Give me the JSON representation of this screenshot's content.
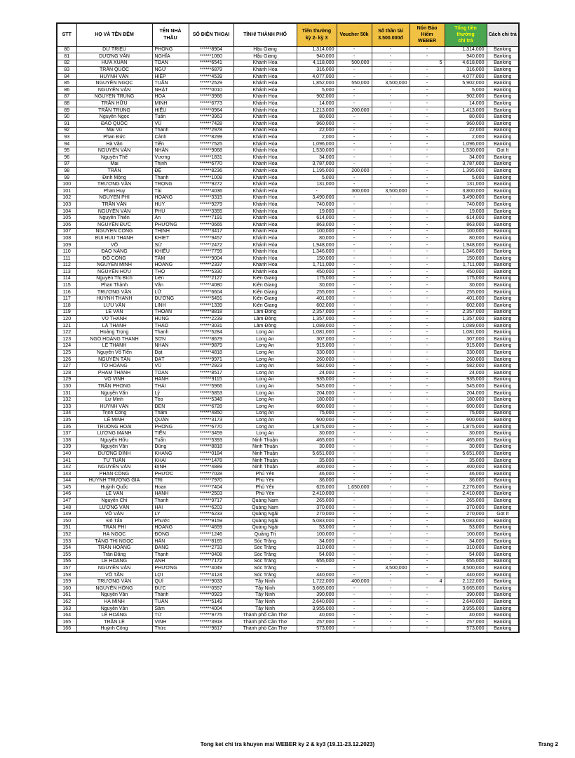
{
  "page": {
    "footer_left": "Tong ket chi tra khuyen mai WEBER ky 2 & ky3 (19.11-23.12.2023)",
    "footer_right": "Trang 2"
  },
  "colors": {
    "header_yellow": "#F0C143",
    "header_green": "#4CA64F",
    "header_green_text": "#FFFF00",
    "header_gray": "#E8E8E8",
    "border_dark": "#1a1a1a",
    "border_mid": "#3f3f3f"
  },
  "table": {
    "columns": [
      {
        "key": "stt",
        "label": "STT",
        "bg": "plain"
      },
      {
        "key": "ho-va-ten-dem",
        "label": "HỌ VÀ TÊN ĐỆM",
        "bg": "plain"
      },
      {
        "key": "ten-nha-thau",
        "label": "TÊN NHÀ THẦU",
        "bg": "plain"
      },
      {
        "key": "so-dien-thoai",
        "label": "SỐ ĐIỆN THOẠI",
        "bg": "plain"
      },
      {
        "key": "tinh-thanh-pho",
        "label": "TỈNH/ THÀNH PHỐ",
        "bg": "plain"
      },
      {
        "key": "tien-thuong-ky2-ky3",
        "label": "Tiền thưởng\nkỳ 2-  kỳ 3",
        "bg": "yellow"
      },
      {
        "key": "voucher-50k",
        "label": "Voucher 50k",
        "bg": "yellow"
      },
      {
        "key": "so-than-tai",
        "label": "Số thần tài\n3.500.000đ",
        "bg": "yellow"
      },
      {
        "key": "non-bao-hiem-weber",
        "label": "Nón Bảo Hiểm\nWEBER",
        "bg": "yellow"
      },
      {
        "key": "tong-tien-thuong-chi-tra",
        "label": "Tổng tiền thưởng\nchi trả",
        "bg": "green"
      },
      {
        "key": "cach-chi-tra",
        "label": "Cách chi trả",
        "bg": "gray"
      }
    ],
    "rows": [
      [
        "80",
        "DƯ TRIỆU",
        "PHONG",
        "******8904",
        "Hậu Giang",
        "1,314,000",
        "-",
        "-",
        "-",
        "1,314,000",
        "Banking"
      ],
      [
        "81",
        "DƯƠNG VĂN",
        "NGHĨA",
        "******1060",
        "Hậu Giang",
        "940,000",
        "-",
        "-",
        "-",
        "940,000",
        "Banking"
      ],
      [
        "82",
        "HỨA XUÂN",
        "TOÀN",
        "******6541",
        "Khánh Hòa",
        "4,118,000",
        "500,000",
        "-",
        "5",
        "4,618,000",
        "Banking"
      ],
      [
        "83",
        "TRẦN QUỐC",
        "NGỮ",
        "******6879",
        "Khánh Hòa",
        "316,000",
        "-",
        "-",
        "-",
        "316,000",
        "Banking"
      ],
      [
        "84",
        "HUỲNH VĂN",
        "HIỆP",
        "******4539",
        "Khánh Hòa",
        "4,077,000",
        "-",
        "-",
        "-",
        "4,077,000",
        "Banking"
      ],
      [
        "85",
        "NGUYỄN NGỌC",
        "TUẤN",
        "******2529",
        "Khánh Hòa",
        "1,852,000",
        "550,000",
        "3,500,000",
        "-",
        "5,902,000",
        "Banking"
      ],
      [
        "86",
        "NGUYỄN VĂN",
        "NHẬT",
        "******0010",
        "Khánh Hòa",
        "5,000",
        "-",
        "-",
        "-",
        "5,000",
        "Banking"
      ],
      [
        "87",
        "NGUYỄN TRUNG",
        "HOÀ",
        "******3966",
        "Khánh Hòa",
        "902,000",
        "-",
        "-",
        "-",
        "902,000",
        "Banking"
      ],
      [
        "88",
        "TRẦN HỮU",
        "MINH",
        "******6773",
        "Khánh Hòa",
        "14,000",
        "-",
        "-",
        "-",
        "14,000",
        "Banking"
      ],
      [
        "89",
        "TRẦN TRUNG",
        "HIẾU",
        "******0964",
        "Khánh Hòa",
        "1,213,000",
        "200,000",
        "-",
        "-",
        "1,413,000",
        "Banking"
      ],
      [
        "90",
        "Nguyễn Ngọc",
        "Tuấn",
        "******3963",
        "Khánh Hòa",
        "80,000",
        "-",
        "-",
        "-",
        "80,000",
        "Banking"
      ],
      [
        "91",
        "ĐÀO QUỐC",
        "VŨ",
        "******7428",
        "Khánh Hòa",
        "960,000",
        "-",
        "-",
        "-",
        "960,000",
        "Banking"
      ],
      [
        "92",
        "Mai Vũ",
        "Thành",
        "******2978",
        "Khánh Hòa",
        "22,000",
        "-",
        "-",
        "-",
        "22,000",
        "Banking"
      ],
      [
        "93",
        "Phan Đức",
        "Cảnh",
        "******8299",
        "Khánh Hòa",
        "2,000",
        "-",
        "-",
        "-",
        "2,000",
        "Banking"
      ],
      [
        "94",
        "Hà Văn",
        "Tiến",
        "******7525",
        "Khánh Hòa",
        "1,096,000",
        "-",
        "-",
        "-",
        "1,096,000",
        "Banking"
      ],
      [
        "95",
        "NGUYỄN VĂN",
        "NHÂN",
        "******9068",
        "Khánh Hòa",
        "1,530,000",
        "-",
        "-",
        "-",
        "1,530,000",
        "Got It"
      ],
      [
        "96",
        "Nguyễn Thế",
        "Vương",
        "******1831",
        "Khánh Hòa",
        "34,000",
        "-",
        "-",
        "-",
        "34,000",
        "Banking"
      ],
      [
        "97",
        "Mai",
        "Thịnh",
        "******6770",
        "Khánh Hòa",
        "3,787,000",
        "-",
        "-",
        "-",
        "3,787,000",
        "Banking"
      ],
      [
        "98",
        "TRẦN",
        "ĐỆ",
        "******8236",
        "Khánh Hòa",
        "1,195,000",
        "200,000",
        "-",
        "-",
        "1,395,000",
        "Banking"
      ],
      [
        "99",
        "Đinh Mộng",
        "Thanh",
        "******1008",
        "Khánh Hòa",
        "5,000",
        "-",
        "-",
        "-",
        "5,000",
        "Banking"
      ],
      [
        "100",
        "TRƯƠNG VĂN",
        "TRỌNG",
        "******9272",
        "Khánh Hòa",
        "131,000",
        "-",
        "-",
        "-",
        "131,000",
        "Banking"
      ],
      [
        "101",
        "Phan Huy",
        "Tài",
        "******4036",
        "Khánh Hòa",
        "-",
        "300,000",
        "3,500,000",
        "-",
        "3,800,000",
        "Banking"
      ],
      [
        "102",
        "NGUYỄN PHI",
        "HOÀNG",
        "******3315",
        "Khánh Hòa",
        "3,490,000",
        "-",
        "-",
        "-",
        "3,490,000",
        "Banking"
      ],
      [
        "103",
        "TRẦN VĂN",
        "HUY",
        "******9279",
        "Khánh Hòa",
        "740,000",
        "-",
        "-",
        "-",
        "740,000",
        "Banking"
      ],
      [
        "104",
        "NGUYỄN VĂN",
        "PHÚ",
        "******3355",
        "Khánh Hòa",
        "19,000",
        "-",
        "-",
        "-",
        "19,000",
        "Banking"
      ],
      [
        "105",
        "Nguyễn Thiên",
        "Ân",
        "******7191",
        "Khánh Hòa",
        "614,000",
        "-",
        "-",
        "-",
        "614,000",
        "Banking"
      ],
      [
        "106",
        "NGUYỄN ĐỨC",
        "PHƯƠNG",
        "******0665",
        "Khánh Hòa",
        "863,000",
        "-",
        "-",
        "-",
        "863,000",
        "Banking"
      ],
      [
        "107",
        "NGUYỄN CÔNG",
        "THỊNH",
        "******3417",
        "Khánh Hòa",
        "100,000",
        "-",
        "-",
        "-",
        "100,000",
        "Banking"
      ],
      [
        "108",
        "BUI HUU THANH",
        "KHIET",
        "******9457",
        "Khánh Hòa",
        "80,000",
        "-",
        "-",
        "-",
        "80,000",
        "Banking"
      ],
      [
        "109",
        "VÕ",
        "SỬ",
        "******2472",
        "Khánh Hòa",
        "1,948,000",
        "-",
        "-",
        "-",
        "1,948,000",
        "Banking"
      ],
      [
        "110",
        "ĐÀO NĂNG",
        "KHIẾU",
        "******7799",
        "Khánh Hòa",
        "1,346,000",
        "-",
        "-",
        "-",
        "1,346,000",
        "Banking"
      ],
      [
        "111",
        "ĐỖ CÔNG",
        "TÂM",
        "******9004",
        "Khánh Hòa",
        "150,000",
        "-",
        "-",
        "-",
        "150,000",
        "Banking"
      ],
      [
        "112",
        "NGUYỄN MINH",
        "HOÀNG",
        "******2337",
        "Khánh Hòa",
        "1,711,000",
        "-",
        "-",
        "-",
        "1,711,000",
        "Banking"
      ],
      [
        "113",
        "NGUYỄN HỮU",
        "THỌ",
        "******5330",
        "Khánh Hòa",
        "450,000",
        "-",
        "-",
        "-",
        "450,000",
        "Banking"
      ],
      [
        "114",
        "Nguyễn Thị Bích",
        "Liên",
        "******2127",
        "Kiên Giang",
        "175,000",
        "-",
        "-",
        "-",
        "175,000",
        "Banking"
      ],
      [
        "115",
        "Phan Thành",
        "Vân",
        "******4080",
        "Kiên Giang",
        "30,000",
        "-",
        "-",
        "-",
        "30,000",
        "Banking"
      ],
      [
        "116",
        "TRƯƠNG VĂN",
        "LỮ",
        "******6604",
        "Kiên Giang",
        "255,000",
        "-",
        "-",
        "-",
        "255,000",
        "Banking"
      ],
      [
        "117",
        "HUỲNH THANH",
        "ĐƯỜNG",
        "******5491",
        "Kiên Giang",
        "401,000",
        "-",
        "-",
        "-",
        "401,000",
        "Banking"
      ],
      [
        "118",
        "LƯU VĂN",
        "LINH",
        "******1339",
        "Kiên Giang",
        "602,000",
        "-",
        "-",
        "-",
        "602,000",
        "Banking"
      ],
      [
        "119",
        "LÊ VĂN",
        "THOÁN",
        "******8818",
        "Lâm Đồng",
        "2,357,000",
        "-",
        "-",
        "-",
        "2,357,000",
        "Banking"
      ],
      [
        "120",
        "VŨ THANH",
        "HÙNG",
        "******2239",
        "Lâm Đồng",
        "1,357,000",
        "-",
        "-",
        "-",
        "1,357,000",
        "Banking"
      ],
      [
        "121",
        "LÃ THANH",
        "THẢO",
        "******3031",
        "Lâm Đồng",
        "1,089,000",
        "-",
        "-",
        "-",
        "1,089,000",
        "Banking"
      ],
      [
        "122",
        "Hoàng Trọng",
        "Thanh",
        "******5284",
        "Long An",
        "1,081,000",
        "-",
        "-",
        "-",
        "1,081,000",
        "Banking"
      ],
      [
        "123",
        "NGÔ HOÀNG THANH",
        "SƠN",
        "******8679",
        "Long An",
        "307,000",
        "-",
        "-",
        "-",
        "307,000",
        "Banking"
      ],
      [
        "124",
        "LÊ THANH",
        "NHÀN",
        "******9879",
        "Long An",
        "915,000",
        "-",
        "-",
        "-",
        "915,000",
        "Banking"
      ],
      [
        "125",
        "Nguyễn Võ Tiến",
        "Đạt",
        "******4818",
        "Long An",
        "330,000",
        "-",
        "-",
        "-",
        "330,000",
        "Banking"
      ],
      [
        "126",
        "NGUYỄN TẤN",
        "ĐẠT",
        "******9971",
        "Long An",
        "260,000",
        "-",
        "-",
        "-",
        "260,000",
        "Banking"
      ],
      [
        "127",
        "TÔ HOÀNG",
        "VŨ",
        "******2923",
        "Long An",
        "582,000",
        "-",
        "-",
        "-",
        "582,000",
        "Banking"
      ],
      [
        "128",
        "PHAM THANH",
        "TOAN",
        "******8517",
        "Long An",
        "24,000",
        "-",
        "-",
        "-",
        "24,000",
        "Banking"
      ],
      [
        "129",
        "VÕ VINH",
        "HANH",
        "******9115",
        "Long An",
        "935,000",
        "-",
        "-",
        "-",
        "935,000",
        "Banking"
      ],
      [
        "130",
        "TRẦN PHONG",
        "THÁI",
        "******5966",
        "Long An",
        "545,000",
        "-",
        "-",
        "-",
        "545,000",
        "Banking"
      ],
      [
        "131",
        "Nguyễn Văn",
        "Lý",
        "******5853",
        "Long An",
        "204,000",
        "-",
        "-",
        "-",
        "204,000",
        "Banking"
      ],
      [
        "132",
        "Lư Minh",
        "Tèo",
        "******5348",
        "Long An",
        "180,000",
        "-",
        "-",
        "-",
        "180,000",
        "Banking"
      ],
      [
        "133",
        "HUỲNH VĂN",
        "ĐEN",
        "******6728",
        "Long An",
        "600,000",
        "-",
        "-",
        "-",
        "600,000",
        "Banking"
      ],
      [
        "134",
        "Trịnh Công",
        "Thẩm",
        "******4850",
        "Long An",
        "75,000",
        "-",
        "-",
        "-",
        "75,000",
        "Banking"
      ],
      [
        "135",
        "LÊ MINH",
        "QUÂN",
        "******3173",
        "Long An",
        "600,000",
        "-",
        "-",
        "-",
        "600,000",
        "Banking"
      ],
      [
        "136",
        "TRUONG HOAI",
        "PHONG",
        "******6770",
        "Long An",
        "1,875,000",
        "-",
        "-",
        "-",
        "1,875,000",
        "Banking"
      ],
      [
        "137",
        "LƯƠNG MẠNH",
        "TIẾN",
        "******3459",
        "Long An",
        "30,000",
        "-",
        "-",
        "-",
        "30,000",
        "Banking"
      ],
      [
        "138",
        "Nguyễn Hữu",
        "Tuấn",
        "******5393",
        "Ninh Thuận",
        "465,000",
        "-",
        "-",
        "-",
        "465,000",
        "Banking"
      ],
      [
        "139",
        "Nguyễn Văn",
        "Dũng",
        "******8818",
        "Ninh Thuận",
        "30,000",
        "-",
        "-",
        "-",
        "30,000",
        "Banking"
      ],
      [
        "140",
        "DƯƠNG ĐÌNH",
        "KHANG",
        "******0184",
        "Ninh Thuận",
        "5,651,000",
        "-",
        "-",
        "-",
        "5,651,000",
        "Banking"
      ],
      [
        "141",
        "TỪ TUẤN",
        "KHẢI",
        "******1478",
        "Ninh Thuận",
        "35,000",
        "-",
        "-",
        "-",
        "35,000",
        "Banking"
      ],
      [
        "142",
        "NGUYỄN VĂN",
        "ĐỊNH",
        "******4889",
        "Ninh Thuận",
        "400,000",
        "-",
        "-",
        "-",
        "400,000",
        "Banking"
      ],
      [
        "143",
        "PHAN CÔNG",
        "PHƯỚC",
        "******7028",
        "Phú Yên",
        "46,000",
        "-",
        "-",
        "-",
        "46,000",
        "Banking"
      ],
      [
        "144",
        "HUỲNH TRƯƠNG GIA",
        "TRÍ",
        "******7970",
        "Phú Yên",
        "36,000",
        "-",
        "-",
        "-",
        "36,000",
        "Banking"
      ],
      [
        "145",
        "Huỳnh Quốc",
        "Hoan",
        "******7404",
        "Phú Yên",
        "626,000",
        "1,650,000",
        "-",
        "-",
        "2,276,000",
        "Banking"
      ],
      [
        "146",
        "LÊ VĂN",
        "HẠNH",
        "******2503",
        "Phú Yên",
        "2,410,000",
        "-",
        "-",
        "-",
        "2,410,000",
        "Banking"
      ],
      [
        "147",
        "Nguyễn Chí",
        "Thanh",
        "******9717",
        "Quảng Nam",
        "265,000",
        "-",
        "-",
        "-",
        "265,000",
        "Banking"
      ],
      [
        "148",
        "LƯƠNG VĂN",
        "HẢI",
        "******6203",
        "Quảng Nam",
        "370,000",
        "-",
        "-",
        "-",
        "370,000",
        "Banking"
      ],
      [
        "149",
        "VÕ VĂN",
        "LY",
        "******6233",
        "Quảng Ngãi",
        "270,000",
        "-",
        "-",
        "-",
        "270,000",
        "Got It"
      ],
      [
        "150",
        "Đỗ Tấn",
        "Phước",
        "******9159",
        "Quảng Ngãi",
        "5,083,000",
        "-",
        "-",
        "-",
        "5,083,000",
        "Banking"
      ],
      [
        "151",
        "TRẦN PHI",
        "HOÀNG",
        "******4659",
        "Quảng Ngãi",
        "53,000",
        "-",
        "-",
        "-",
        "53,000",
        "Banking"
      ],
      [
        "152",
        "HẠ NGỌC",
        "ĐÔNG",
        "******1246",
        "Quảng Trị",
        "100,000",
        "-",
        "-",
        "-",
        "100,000",
        "Banking"
      ],
      [
        "153",
        "TĂNG THỊ NGỌC",
        "HÂN",
        "******8165",
        "Sóc Trăng",
        "34,000",
        "-",
        "-",
        "-",
        "34,000",
        "Banking"
      ],
      [
        "154",
        "TRẦN HOÀNG",
        "ĐANG",
        "******2733",
        "Sóc Trăng",
        "310,000",
        "-",
        "-",
        "-",
        "310,000",
        "Banking"
      ],
      [
        "155",
        "Trần Đăng",
        "Thạnh",
        "******0408",
        "Sóc Trăng",
        "54,000",
        "-",
        "-",
        "-",
        "54,000",
        "Banking"
      ],
      [
        "156",
        "LÊ HOÀNG",
        "ANH",
        "******7172",
        "Sóc Trăng",
        "655,000",
        "-",
        "-",
        "-",
        "655,000",
        "Banking"
      ],
      [
        "157",
        "NGUYỄN VĂN",
        "PHƯƠNG",
        "******4049",
        "Sóc Trăng",
        "-",
        "-",
        "3,500,000",
        "-",
        "3,500,000",
        "Banking"
      ],
      [
        "158",
        "VÕ TẤN",
        "LỢI",
        "******4124",
        "Sóc Trăng",
        "440,000",
        "-",
        "-",
        "-",
        "440,000",
        "Banking"
      ],
      [
        "159",
        "TRƯƠNG VĂN",
        "QUÍ",
        "******9033",
        "Tây Ninh",
        "1,722,000",
        "400,000",
        "-",
        "4",
        "2,122,000",
        "Banking"
      ],
      [
        "160",
        "NGUYỄN HỒNG",
        "ĐỨC",
        "******0557",
        "Tây Ninh",
        "3,665,000",
        "-",
        "-",
        "-",
        "3,665,000",
        "Banking"
      ],
      [
        "161",
        "Nguyễn Văn",
        "Thành",
        "******0923",
        "Tây Ninh",
        "390,000",
        "-",
        "-",
        "-",
        "390,000",
        "Banking"
      ],
      [
        "162",
        "HÀ MINH",
        "TUẤN",
        "******5149",
        "Tây Ninh",
        "2,640,000",
        "-",
        "-",
        "-",
        "2,640,000",
        "Banking"
      ],
      [
        "163",
        "Nguyễn Văn",
        "Sâm",
        "******4004",
        "Tây Ninh",
        "3,955,000",
        "-",
        "-",
        "-",
        "3,955,000",
        "Banking"
      ],
      [
        "164",
        "LÊ HOÀNG",
        "TỬ",
        "******9775",
        "Thành phố Cần Thơ",
        "40,000",
        "-",
        "-",
        "-",
        "40,000",
        "Banking"
      ],
      [
        "165",
        "TRẦN LÊ",
        "VINH",
        "******3918",
        "Thành phố Cần Thơ",
        "257,000",
        "-",
        "-",
        "-",
        "257,000",
        "Banking"
      ],
      [
        "166",
        "Huỳnh Công",
        "Thức",
        "******9617",
        "Thành phố Cần Thơ",
        "573,000",
        "-",
        "-",
        "-",
        "573,000",
        "Banking"
      ]
    ]
  }
}
